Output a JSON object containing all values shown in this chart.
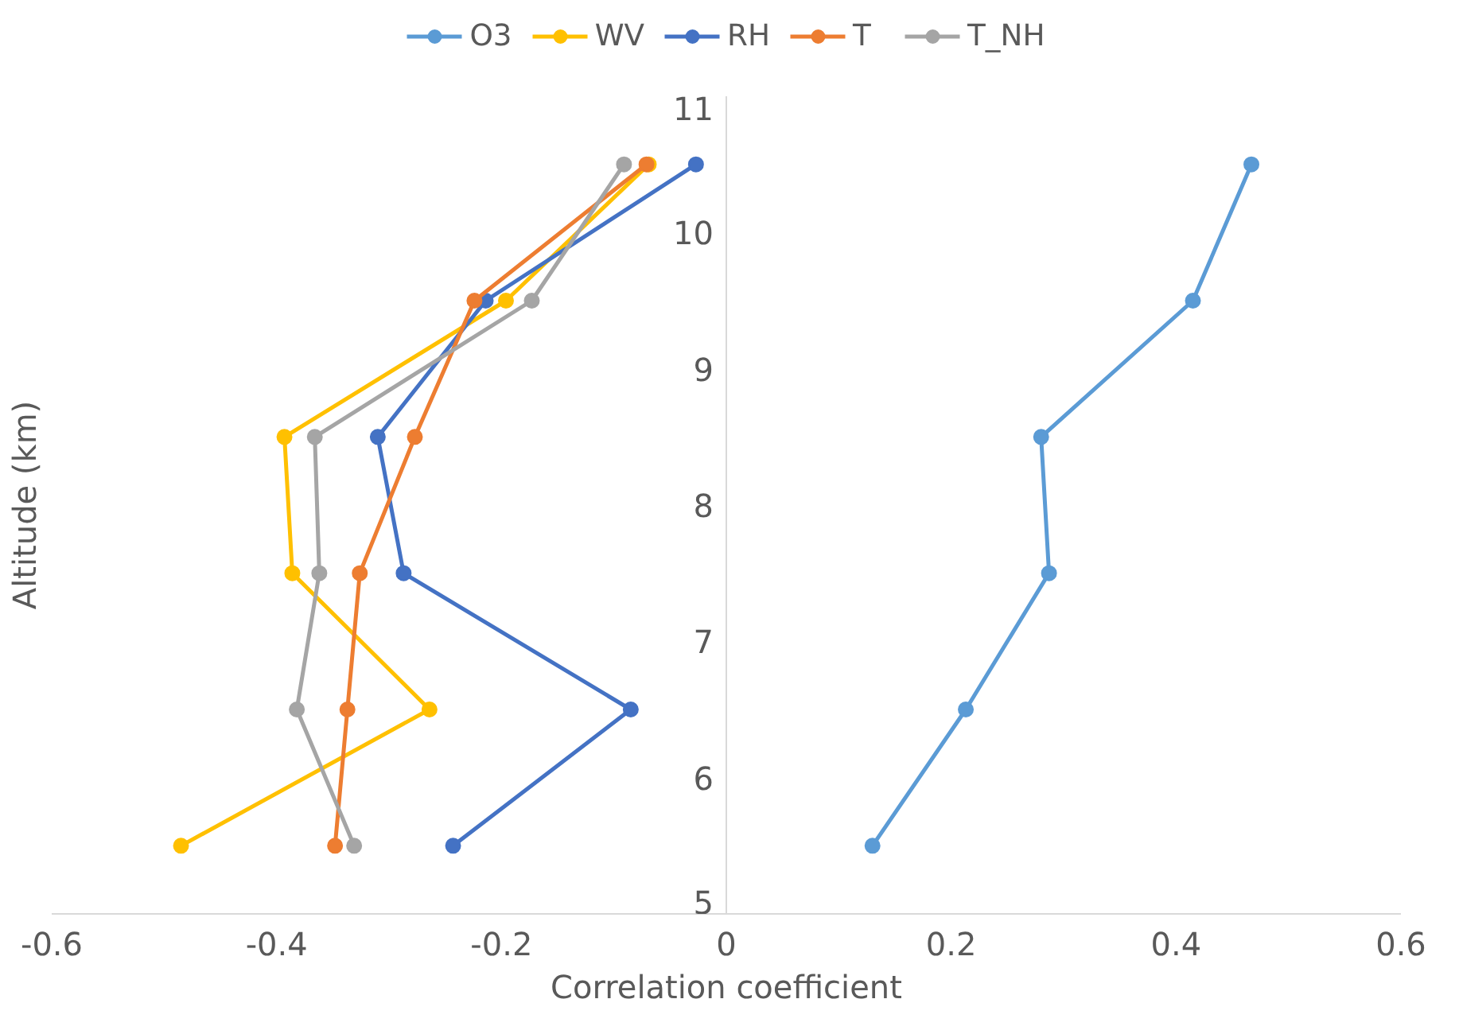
{
  "chart_data": {
    "type": "line",
    "xlabel": "Correlation coefficient",
    "ylabel": "Altitude (km)",
    "xlim": [
      -0.6,
      0.6
    ],
    "xticks": [
      -0.6,
      -0.4,
      -0.2,
      0,
      0.2,
      0.4,
      0.6
    ],
    "ylim": [
      5,
      11
    ],
    "yticks": [
      5,
      6,
      7,
      8,
      9,
      10,
      11
    ],
    "grid": false,
    "legend": "top",
    "marker": "circle",
    "line_style": "solid",
    "series": [
      {
        "name": "O3",
        "color": "#5b9bd5",
        "x": [
          0.13,
          0.213,
          0.287,
          0.28,
          0.415,
          0.467
        ],
        "values": [
          5.5,
          6.5,
          7.5,
          8.5,
          9.5,
          10.5
        ]
      },
      {
        "name": "WV",
        "color": "#ffc000",
        "x": [
          -0.485,
          -0.264,
          -0.386,
          -0.393,
          -0.196,
          -0.069
        ],
        "values": [
          5.5,
          6.5,
          7.5,
          8.5,
          9.5,
          10.5
        ]
      },
      {
        "name": "RH",
        "color": "#4472c4",
        "x": [
          -0.243,
          -0.085,
          -0.287,
          -0.31,
          -0.214,
          -0.027
        ],
        "values": [
          5.5,
          6.5,
          7.5,
          8.5,
          9.5,
          10.5
        ]
      },
      {
        "name": "T",
        "color": "#ed7d31",
        "x": [
          -0.348,
          -0.337,
          -0.326,
          -0.277,
          -0.224,
          -0.071
        ],
        "values": [
          5.5,
          6.5,
          7.5,
          8.5,
          9.5,
          10.5
        ]
      },
      {
        "name": "T_NH",
        "color": "#a5a5a5",
        "x": [
          -0.331,
          -0.382,
          -0.362,
          -0.366,
          -0.173,
          -0.091
        ],
        "values": [
          5.5,
          6.5,
          7.5,
          8.5,
          9.5,
          10.5
        ]
      }
    ]
  }
}
